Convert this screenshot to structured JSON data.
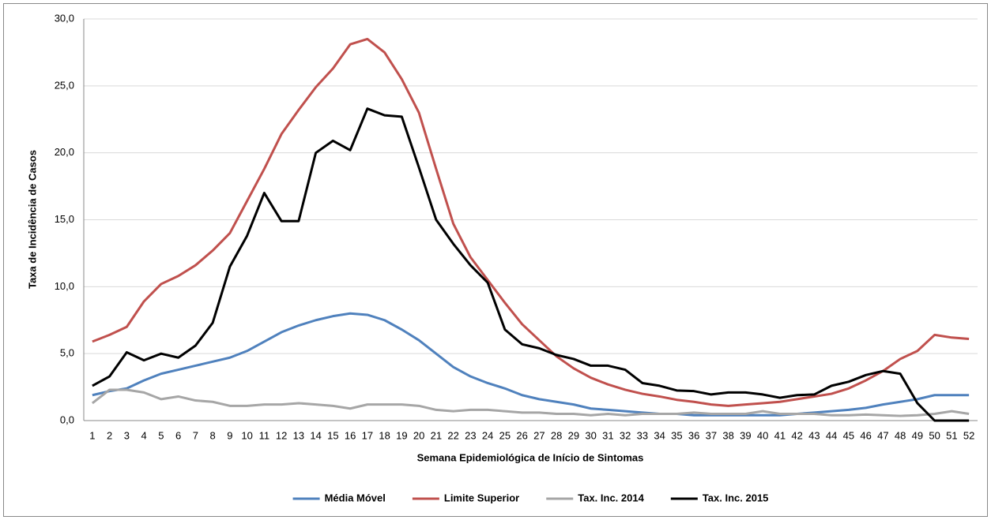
{
  "chart_data": {
    "type": "line",
    "y_label": "Taxa de Incidência de Casos",
    "x_label": "Semana Epidemiológica de Início de Sintomas",
    "categories": [
      "1",
      "2",
      "3",
      "4",
      "5",
      "6",
      "7",
      "8",
      "9",
      "10",
      "11",
      "12",
      "13",
      "14",
      "15",
      "16",
      "17",
      "18",
      "19",
      "20",
      "21",
      "22",
      "23",
      "24",
      "25",
      "26",
      "27",
      "28",
      "29",
      "30",
      "31",
      "32",
      "33",
      "34",
      "35",
      "36",
      "37",
      "38",
      "39",
      "40",
      "41",
      "42",
      "43",
      "44",
      "45",
      "46",
      "47",
      "48",
      "49",
      "50",
      "51",
      "52"
    ],
    "ylim": [
      0,
      30
    ],
    "yticks": [
      {
        "value": 0,
        "label": "0,0"
      },
      {
        "value": 5,
        "label": "5,0"
      },
      {
        "value": 10,
        "label": "10,0"
      },
      {
        "value": 15,
        "label": "15,0"
      },
      {
        "value": 20,
        "label": "20,0"
      },
      {
        "value": 25,
        "label": "25,0"
      },
      {
        "value": 30,
        "label": "30,0"
      }
    ],
    "grid": true,
    "legend": "bottom",
    "series": [
      {
        "name": "Média Móvel",
        "color": "#4f81bd",
        "values": [
          1.9,
          2.2,
          2.4,
          3.0,
          3.5,
          3.8,
          4.1,
          4.4,
          4.7,
          5.2,
          5.9,
          6.6,
          7.1,
          7.5,
          7.8,
          8.0,
          7.9,
          7.5,
          6.8,
          6.0,
          5.0,
          4.0,
          3.3,
          2.8,
          2.4,
          1.9,
          1.6,
          1.4,
          1.2,
          0.9,
          0.8,
          0.7,
          0.6,
          0.5,
          0.5,
          0.4,
          0.4,
          0.4,
          0.4,
          0.4,
          0.4,
          0.5,
          0.6,
          0.7,
          0.8,
          0.95,
          1.2,
          1.4,
          1.6,
          1.9,
          1.9,
          1.9
        ]
      },
      {
        "name": "Limite Superior",
        "color": "#c0504d",
        "values": [
          5.9,
          6.4,
          7.0,
          8.9,
          10.2,
          10.8,
          11.6,
          12.7,
          14.0,
          16.4,
          18.8,
          21.4,
          23.2,
          24.9,
          26.3,
          28.1,
          28.5,
          27.5,
          25.5,
          23.0,
          18.8,
          14.7,
          12.2,
          10.5,
          8.8,
          7.2,
          6.0,
          4.8,
          3.9,
          3.2,
          2.7,
          2.3,
          2.0,
          1.8,
          1.55,
          1.4,
          1.2,
          1.1,
          1.2,
          1.3,
          1.4,
          1.6,
          1.8,
          2.0,
          2.4,
          3.0,
          3.7,
          4.6,
          5.2,
          6.4,
          6.2,
          6.1
        ]
      },
      {
        "name": "Tax. Inc. 2014",
        "color": "#a6a6a6",
        "values": [
          1.3,
          2.3,
          2.3,
          2.1,
          1.6,
          1.8,
          1.5,
          1.4,
          1.1,
          1.1,
          1.2,
          1.2,
          1.3,
          1.2,
          1.1,
          0.9,
          1.2,
          1.2,
          1.2,
          1.1,
          0.8,
          0.7,
          0.8,
          0.8,
          0.7,
          0.6,
          0.6,
          0.5,
          0.5,
          0.4,
          0.5,
          0.4,
          0.5,
          0.5,
          0.5,
          0.6,
          0.5,
          0.5,
          0.5,
          0.7,
          0.5,
          0.5,
          0.5,
          0.4,
          0.4,
          0.45,
          0.4,
          0.35,
          0.4,
          0.5,
          0.7,
          0.5
        ]
      },
      {
        "name": "Tax. Inc. 2015",
        "color": "#000000",
        "values": [
          2.6,
          3.3,
          5.1,
          4.5,
          5.0,
          4.7,
          5.6,
          7.3,
          11.5,
          13.8,
          17.0,
          14.9,
          14.9,
          20.0,
          20.9,
          20.2,
          23.3,
          22.8,
          22.7,
          18.9,
          15.0,
          13.2,
          11.6,
          10.3,
          6.8,
          5.7,
          5.4,
          4.9,
          4.6,
          4.1,
          4.1,
          3.8,
          2.8,
          2.6,
          2.25,
          2.2,
          1.95,
          2.1,
          2.1,
          1.95,
          1.7,
          1.9,
          1.95,
          2.6,
          2.9,
          3.4,
          3.7,
          3.5,
          1.3,
          0,
          0,
          0
        ]
      }
    ]
  }
}
